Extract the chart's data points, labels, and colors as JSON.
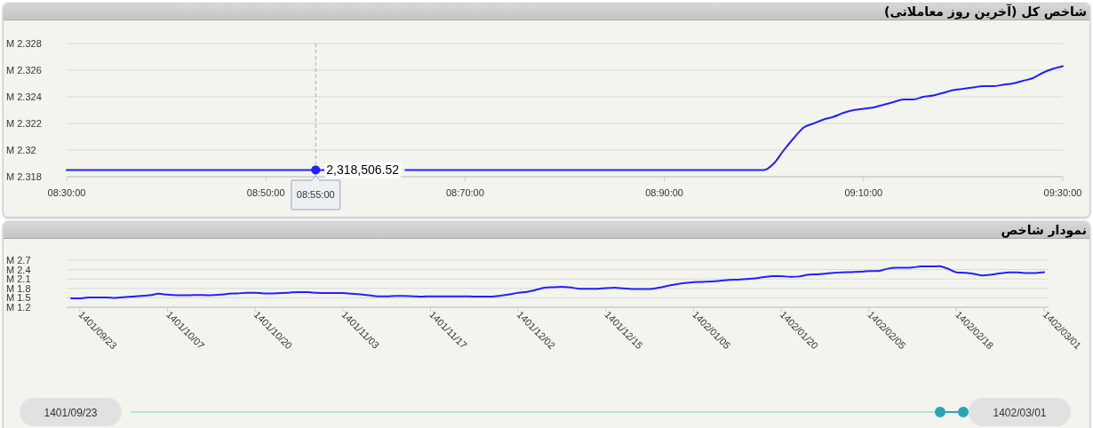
{
  "chart_data": [
    {
      "type": "line",
      "title": "شاخص کل (آخرین روز معاملاتی)",
      "categories": [
        "08:30:00",
        null,
        null,
        null,
        null,
        null,
        null,
        null,
        null,
        null,
        null,
        null,
        null,
        null,
        null,
        null,
        null,
        null,
        null,
        null,
        "08:50:00",
        null,
        null,
        null,
        null,
        "08:55:00",
        null,
        null,
        null,
        null,
        null,
        null,
        null,
        null,
        null,
        null,
        null,
        null,
        null,
        null,
        "08:70:00",
        null,
        null,
        null,
        null,
        null,
        null,
        null,
        null,
        null,
        null,
        null,
        null,
        null,
        null,
        null,
        null,
        null,
        null,
        null,
        "08:90:00",
        null,
        null,
        null,
        null,
        null,
        null,
        null,
        null,
        null,
        null,
        null,
        null,
        null,
        null,
        null,
        null,
        null,
        null,
        null,
        "09:10:00",
        null,
        null,
        null,
        null,
        null,
        null,
        null,
        null,
        null,
        null,
        null,
        null,
        null,
        null,
        null,
        null,
        null,
        null,
        null,
        "09:30:00"
      ],
      "values": [
        2.3185,
        2.3185,
        2.3185,
        2.3185,
        2.3185,
        2.3185,
        2.3185,
        2.3185,
        2.3185,
        2.3185,
        2.3185,
        2.3185,
        2.3185,
        2.3185,
        2.3185,
        2.3185,
        2.3185,
        2.3185,
        2.3185,
        2.3185,
        2.3185,
        2.3185,
        2.3185,
        2.3185,
        2.3185,
        2.31850652,
        2.3185,
        null,
        null,
        null,
        null,
        null,
        null,
        null,
        2.3185,
        2.3185,
        2.3185,
        2.3185,
        2.3185,
        2.3185,
        2.3185,
        2.3185,
        2.3185,
        2.3185,
        2.3185,
        2.3185,
        2.3185,
        2.3185,
        2.3185,
        2.3185,
        2.3185,
        2.3185,
        2.3185,
        2.3185,
        2.3185,
        2.3185,
        2.3185,
        2.3185,
        2.3185,
        2.3185,
        2.3185,
        2.3185,
        2.3185,
        2.3185,
        2.3185,
        2.3185,
        2.3185,
        2.3185,
        2.3185,
        2.3185,
        2.3185,
        2.319,
        2.32,
        2.3209,
        2.3217,
        2.322,
        2.3223,
        2.3225,
        2.3228,
        2.323,
        2.3231,
        2.3232,
        2.3234,
        2.3236,
        2.3238,
        2.3238,
        2.324,
        2.3241,
        2.3243,
        2.3245,
        2.3246,
        2.3247,
        2.3248,
        2.3248,
        2.3249,
        2.325,
        2.3252,
        2.3254,
        2.3258,
        2.3261,
        2.3263
      ],
      "color": "#2020ff",
      "ylim": [
        2.318,
        2.328
      ],
      "yticks": [
        {
          "value": 2.318,
          "label": "2.318 M"
        },
        {
          "value": 2.32,
          "label": "2.32 M"
        },
        {
          "value": 2.322,
          "label": "2.322 M"
        },
        {
          "value": 2.324,
          "label": "2.324 M"
        },
        {
          "value": 2.326,
          "label": "2.326 M"
        },
        {
          "value": 2.328,
          "label": "2.328 M"
        }
      ],
      "grid": "y",
      "ref_lines": [
        {
          "axis": "x",
          "value": "08:55:00",
          "line_style": "dashed",
          "color": "#aaaaaa"
        }
      ],
      "annotations": [
        {
          "text": "2,318,506.52",
          "x": "08:55:00",
          "y": 2.31850652
        }
      ]
    },
    {
      "type": "line",
      "title": "نمودار شاخص",
      "categories": [
        null,
        "1401/09/23",
        null,
        null,
        null,
        null,
        null,
        null,
        null,
        null,
        null,
        "1401/10/07",
        null,
        null,
        null,
        null,
        null,
        null,
        null,
        null,
        null,
        "1401/10/20",
        null,
        null,
        null,
        null,
        null,
        null,
        null,
        null,
        null,
        "1401/11/03",
        null,
        null,
        null,
        null,
        null,
        null,
        null,
        null,
        null,
        "1401/11/17",
        null,
        null,
        null,
        null,
        null,
        null,
        null,
        null,
        null,
        "1401/12/02",
        null,
        null,
        null,
        null,
        null,
        null,
        null,
        null,
        null,
        "1401/12/15",
        null,
        null,
        null,
        null,
        null,
        null,
        null,
        null,
        null,
        "1402/01/05",
        null,
        null,
        null,
        null,
        null,
        null,
        null,
        null,
        null,
        "1402/01/20",
        null,
        null,
        null,
        null,
        null,
        null,
        null,
        null,
        null,
        "1402/02/05",
        null,
        null,
        null,
        null,
        null,
        null,
        null,
        null,
        null,
        "1402/02/18",
        null,
        null,
        null,
        null,
        null,
        null,
        null,
        null,
        null,
        "1402/03/01"
      ],
      "values": [
        1.48,
        1.48,
        1.51,
        1.51,
        1.51,
        1.5,
        1.52,
        1.54,
        1.56,
        1.58,
        1.63,
        1.6,
        1.58,
        1.58,
        1.59,
        1.59,
        1.58,
        1.6,
        1.63,
        1.64,
        1.66,
        1.66,
        1.64,
        1.64,
        1.65,
        1.67,
        1.68,
        1.68,
        1.66,
        1.65,
        1.65,
        1.65,
        1.63,
        1.61,
        1.58,
        1.55,
        1.55,
        1.56,
        1.56,
        1.55,
        1.54,
        1.55,
        1.55,
        1.55,
        1.55,
        1.55,
        1.54,
        1.54,
        1.54,
        1.57,
        1.61,
        1.66,
        1.69,
        1.75,
        1.82,
        1.84,
        1.85,
        1.83,
        1.79,
        1.79,
        1.79,
        1.81,
        1.82,
        1.8,
        1.78,
        1.78,
        1.78,
        1.82,
        1.88,
        1.93,
        1.97,
        2.0,
        2.01,
        2.02,
        2.04,
        2.07,
        2.08,
        2.1,
        2.12,
        2.16,
        2.19,
        2.19,
        2.17,
        2.18,
        2.23,
        2.25,
        2.27,
        2.3,
        2.31,
        2.32,
        2.33,
        2.35,
        2.35,
        2.42,
        2.46,
        2.46,
        2.47,
        2.5,
        2.5,
        2.51,
        2.43,
        2.31,
        2.3,
        2.26,
        2.21,
        2.24,
        2.28,
        2.31,
        2.31,
        2.29,
        2.29,
        2.32
      ],
      "color": "#2020ff",
      "ylim": [
        1.2,
        2.7
      ],
      "yticks": [
        {
          "value": 1.2,
          "label": "1.2 M"
        },
        {
          "value": 1.5,
          "label": "1.5 M"
        },
        {
          "value": 1.8,
          "label": "1.8 M"
        },
        {
          "value": 2.1,
          "label": "2.1 M"
        },
        {
          "value": 2.4,
          "label": "2.4 M"
        },
        {
          "value": 2.7,
          "label": "2.7 M"
        }
      ],
      "grid": "y",
      "annotations": [
        "1401/09/23",
        "1402/03/01"
      ]
    }
  ]
}
